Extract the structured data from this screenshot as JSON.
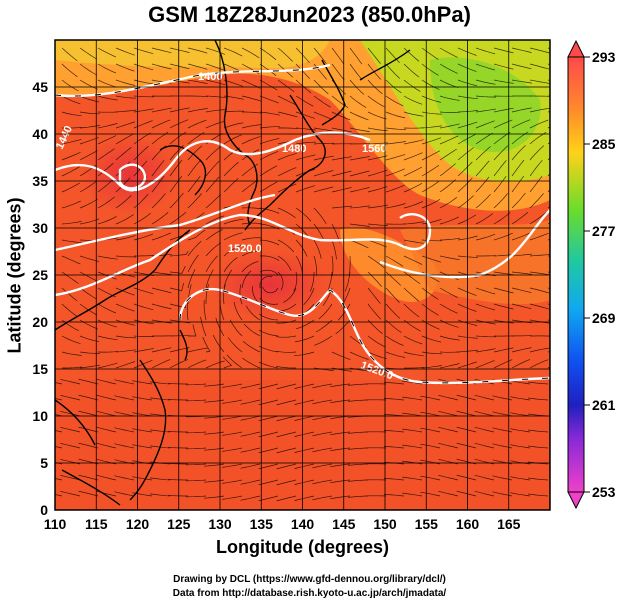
{
  "header": {
    "title": "GSM 18Z28Jun2023 (850.0hPa)"
  },
  "axes": {
    "xlabel": "Longitude (degrees)",
    "ylabel": "Latitude  (degrees)",
    "xticks": [
      "110",
      "115",
      "120",
      "125",
      "130",
      "135",
      "140",
      "145",
      "150",
      "155",
      "160",
      "165"
    ],
    "yticks": [
      "0",
      "5",
      "10",
      "15",
      "20",
      "25",
      "30",
      "35",
      "40",
      "45"
    ]
  },
  "colorbar": {
    "labels": [
      "293",
      "285",
      "277",
      "269",
      "261",
      "253"
    ]
  },
  "contours": {
    "labels": [
      "1400",
      "1440",
      "1480",
      "1520.0",
      "1560",
      "1520.0"
    ]
  },
  "credits": {
    "line1": "Drawing by DCL (https://www.gfd-dennou.org/library/dcl/)",
    "line2": "Data from http://database.rish.kyoto-u.ac.jp/arch/jmadata/"
  },
  "chart_data": {
    "type": "heatmap",
    "title": "GSM 18Z28Jun2023 (850.0hPa)",
    "xlabel": "Longitude (degrees)",
    "ylabel": "Latitude  (degrees)",
    "xlim": [
      110,
      170
    ],
    "ylim": [
      0,
      50
    ],
    "colorbar_range": [
      253,
      293
    ],
    "colorbar_ticks": [
      293,
      285,
      277,
      269,
      261,
      253
    ],
    "grid": true,
    "overlays": [
      "geopotential height contours",
      "wind streamlines",
      "coastlines"
    ]
  }
}
